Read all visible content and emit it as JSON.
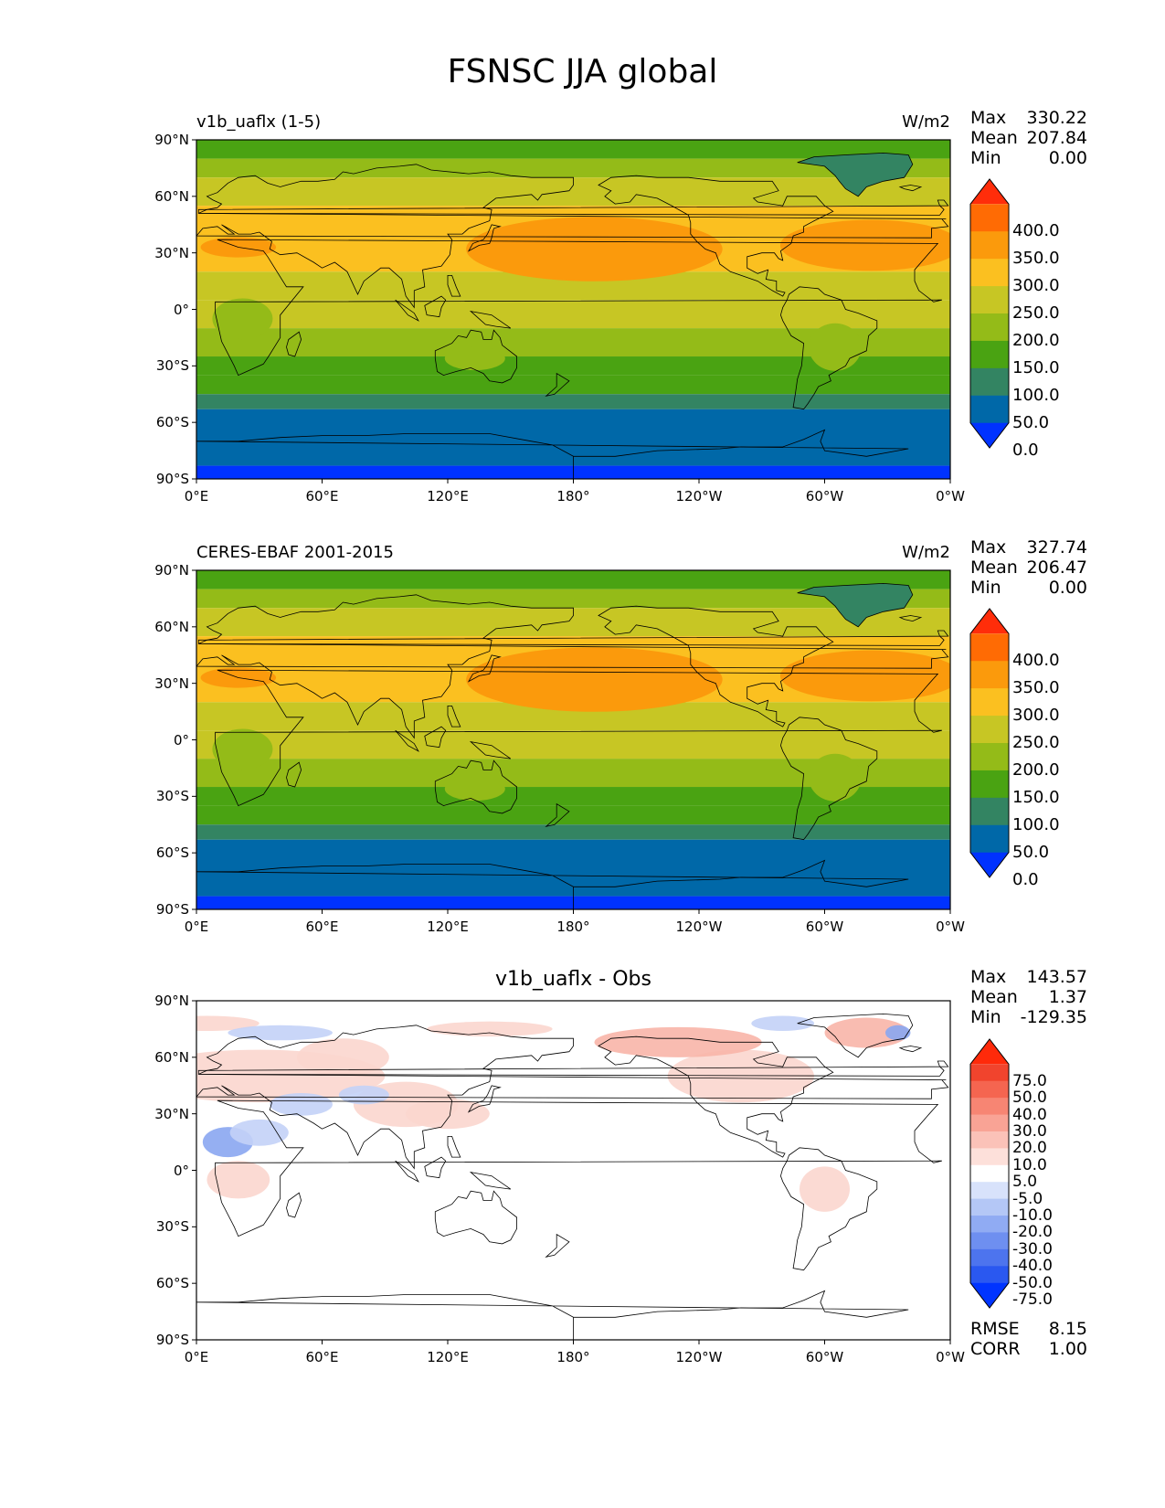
{
  "figure_title": "FSNSC JJA global",
  "panels": [
    {
      "id": "test",
      "title_left": "v1b_uaflx (1-5)",
      "title_center": "",
      "units": "W/m2",
      "stats": [
        {
          "label": "Max",
          "value": "330.22"
        },
        {
          "label": "Mean",
          "value": "207.84"
        },
        {
          "label": "Min",
          "value": "0.00"
        }
      ],
      "extra_stats": [],
      "colorbar": {
        "tick_labels": [
          "400.0",
          "350.0",
          "300.0",
          "250.0",
          "200.0",
          "150.0",
          "100.0",
          "50.0",
          "0.0"
        ],
        "colors": [
          "#0032ff",
          "#0068a8",
          "#338462",
          "#4aa312",
          "#94bb18",
          "#c7c624",
          "#fbc020",
          "#fb9a0c",
          "#ff6b04",
          "#ff2d0a"
        ]
      }
    },
    {
      "id": "reference",
      "title_left": "CERES-EBAF 2001-2015",
      "title_center": "",
      "units": "W/m2",
      "stats": [
        {
          "label": "Max",
          "value": "327.74"
        },
        {
          "label": "Mean",
          "value": "206.47"
        },
        {
          "label": "Min",
          "value": "0.00"
        }
      ],
      "extra_stats": [],
      "colorbar": {
        "tick_labels": [
          "400.0",
          "350.0",
          "300.0",
          "250.0",
          "200.0",
          "150.0",
          "100.0",
          "50.0",
          "0.0"
        ],
        "colors": [
          "#0032ff",
          "#0068a8",
          "#338462",
          "#4aa312",
          "#94bb18",
          "#c7c624",
          "#fbc020",
          "#fb9a0c",
          "#ff6b04",
          "#ff2d0a"
        ]
      }
    },
    {
      "id": "difference",
      "title_left": "",
      "title_center": "v1b_uaflx - Obs",
      "units": "",
      "stats": [
        {
          "label": "Max",
          "value": "143.57"
        },
        {
          "label": "Mean",
          "value": "1.37"
        },
        {
          "label": "Min",
          "value": "-129.35"
        }
      ],
      "extra_stats": [
        {
          "label": "RMSE",
          "value": "8.15"
        },
        {
          "label": "CORR",
          "value": "1.00"
        }
      ],
      "colorbar": {
        "tick_labels": [
          "75.0",
          "50.0",
          "40.0",
          "30.0",
          "20.0",
          "10.0",
          "5.0",
          "-5.0",
          "-10.0",
          "-20.0",
          "-30.0",
          "-40.0",
          "-50.0",
          "-75.0"
        ],
        "colors": [
          "#0034ff",
          "#2a58f0",
          "#4d74ee",
          "#6e8ff0",
          "#90abf3",
          "#b4c7f6",
          "#d8e2fb",
          "#ffffff",
          "#fde0da",
          "#fbc2b8",
          "#f9a395",
          "#f78573",
          "#f56550",
          "#f1442d",
          "#ff2a0a"
        ]
      }
    }
  ],
  "axes": {
    "lat_labels": [
      "90°N",
      "60°N",
      "30°N",
      "0°",
      "30°S",
      "60°S",
      "90°S"
    ],
    "lon_labels": [
      "0°E",
      "60°E",
      "120°E",
      "180°",
      "120°W",
      "60°W",
      "0°W"
    ]
  }
}
